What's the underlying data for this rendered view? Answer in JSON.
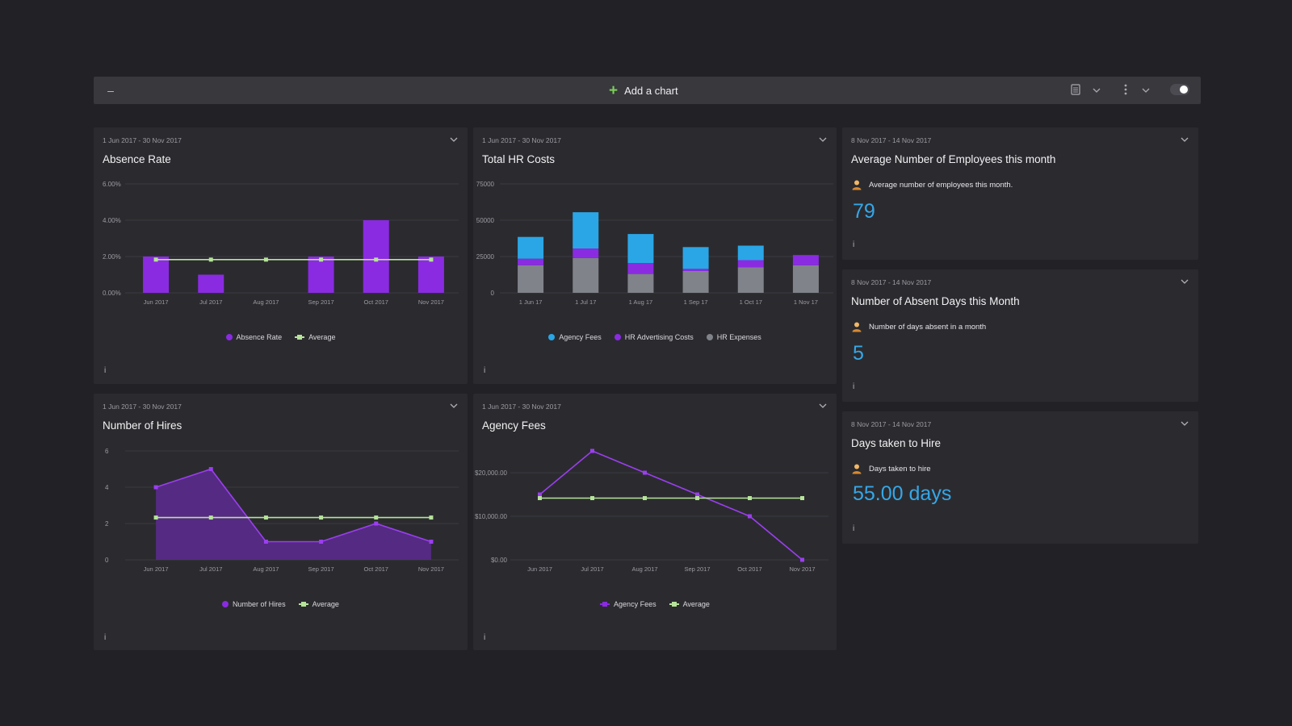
{
  "toolbar": {
    "collapse_icon": "minus-icon",
    "add_chart_label": "Add a chart",
    "icons": [
      "document-icon",
      "chevron-down-icon",
      "more-vertical-icon",
      "chevron-down-icon",
      "toggle-switch"
    ]
  },
  "colors": {
    "purple": "#8a2be2",
    "purple_bright": "#9b3ef0",
    "avg_green": "#b6e39a",
    "agency_blue": "#2aa6e6",
    "hr_grey": "#80838a",
    "kpi_blue": "#35a7e8"
  },
  "cards": {
    "absence": {
      "range": "1 Jun 2017 - 30 Nov 2017",
      "title": "Absence Rate",
      "legend": [
        "Absence Rate",
        "Average"
      ],
      "info": "i"
    },
    "hrcosts": {
      "range": "1 Jun 2017 - 30 Nov 2017",
      "title": "Total HR Costs",
      "legend": [
        "Agency Fees",
        "HR Advertising Costs",
        "HR Expenses"
      ],
      "info": "i"
    },
    "hires": {
      "range": "1 Jun 2017 - 30 Nov 2017",
      "title": "Number of Hires",
      "legend": [
        "Number of Hires",
        "Average"
      ],
      "info": "i"
    },
    "agency": {
      "range": "1 Jun 2017 - 30 Nov 2017",
      "title": "Agency Fees",
      "legend": [
        "Agency Fees",
        "Average"
      ],
      "info": "i"
    },
    "employees": {
      "range": "8 Nov 2017 - 14 Nov 2017",
      "title": "Average Number of Employees this month",
      "subtitle": "Average number of employees this month.",
      "value": "79",
      "info": "i"
    },
    "absentdays": {
      "range": "8 Nov 2017 - 14 Nov 2017",
      "title": "Number of Absent Days this Month",
      "subtitle": "Number of days absent in a month",
      "value": "5",
      "info": "i"
    },
    "daystohire": {
      "range": "8 Nov 2017 - 14 Nov 2017",
      "title": "Days taken to Hire",
      "subtitle": "Days taken to hire",
      "value": "55.00 days",
      "info": "i"
    }
  },
  "chart_data": [
    {
      "id": "absence",
      "type": "bar",
      "categories": [
        "Jun 2017",
        "Jul 2017",
        "Aug 2017",
        "Sep 2017",
        "Oct 2017",
        "Nov 2017"
      ],
      "yticks": [
        "0.00%",
        "2.00%",
        "4.00%",
        "6.00%"
      ],
      "ylim": [
        0,
        6
      ],
      "series": [
        {
          "name": "Absence Rate",
          "type": "bar",
          "values": [
            2.0,
            1.0,
            0.0,
            2.0,
            4.0,
            2.0
          ]
        },
        {
          "name": "Average",
          "type": "line",
          "values": [
            1.83,
            1.83,
            1.83,
            1.83,
            1.83,
            1.83
          ]
        }
      ],
      "legend": "bottom",
      "grid": true
    },
    {
      "id": "hrcosts",
      "type": "bar",
      "stacked": true,
      "categories": [
        "1 Jun 17",
        "1 Jul 17",
        "1 Aug 17",
        "1 Sep 17",
        "1 Oct 17",
        "1 Nov 17"
      ],
      "yticks": [
        "0",
        "25000",
        "50000",
        "75000"
      ],
      "ylim": [
        0,
        75000
      ],
      "series": [
        {
          "name": "HR Expenses",
          "values": [
            19000,
            24000,
            13000,
            15000,
            17500,
            19000
          ]
        },
        {
          "name": "HR Advertising Costs",
          "values": [
            4500,
            6500,
            7500,
            1500,
            5000,
            7000
          ]
        },
        {
          "name": "Agency Fees",
          "values": [
            15000,
            25000,
            20000,
            15000,
            10000,
            0
          ]
        }
      ],
      "legend": "bottom",
      "grid": true
    },
    {
      "id": "hires",
      "type": "area",
      "categories": [
        "Jun 2017",
        "Jul 2017",
        "Aug 2017",
        "Sep 2017",
        "Oct 2017",
        "Nov 2017"
      ],
      "yticks": [
        "0",
        "2",
        "4",
        "6"
      ],
      "ylim": [
        0,
        6
      ],
      "series": [
        {
          "name": "Number of Hires",
          "type": "area",
          "values": [
            4,
            5,
            1,
            1,
            2,
            1
          ]
        },
        {
          "name": "Average",
          "type": "line",
          "values": [
            2.33,
            2.33,
            2.33,
            2.33,
            2.33,
            2.33
          ]
        }
      ],
      "legend": "bottom",
      "grid": true
    },
    {
      "id": "agency",
      "type": "line",
      "categories": [
        "Jun 2017",
        "Jul 2017",
        "Aug 2017",
        "Sep 2017",
        "Oct 2017",
        "Nov 2017"
      ],
      "yticks": [
        "$0.00",
        "$10,000.00",
        "$20,000.00"
      ],
      "ylim": [
        0,
        25000
      ],
      "series": [
        {
          "name": "Agency Fees",
          "values": [
            15000,
            25000,
            20000,
            15000,
            10000,
            0
          ]
        },
        {
          "name": "Average",
          "values": [
            14166.67,
            14166.67,
            14166.67,
            14166.67,
            14166.67,
            14166.67
          ]
        }
      ],
      "legend": "bottom",
      "grid": true
    }
  ]
}
